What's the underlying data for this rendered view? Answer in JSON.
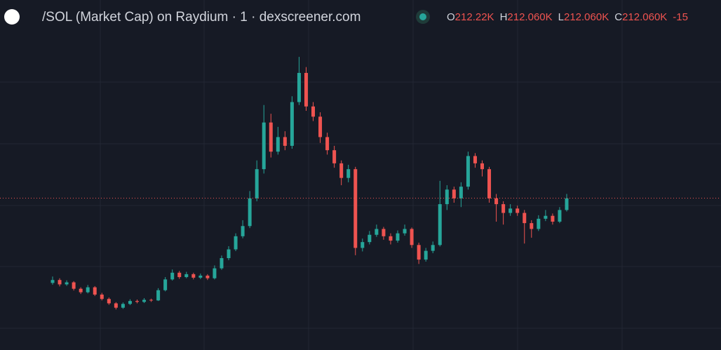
{
  "chart_data": {
    "type": "candlestick",
    "title": "/SOL (Market Cap) on Raydium · 1 · dexscreener.com",
    "legend": [
      {
        "key": "O",
        "value": "212.22K"
      },
      {
        "key": "H",
        "value": "212.060K"
      },
      {
        "key": "L",
        "value": "212.060K"
      },
      {
        "key": "C",
        "value": "212.060K"
      },
      {
        "key": "",
        "value": "-15"
      }
    ],
    "up_color": "#26a69a",
    "down_color": "#ef5350",
    "ylim": [
      160,
      280
    ],
    "last_price": 212.06,
    "ohlc": [
      [
        183.0,
        185.2,
        182.4,
        184.0
      ],
      [
        184.0,
        184.6,
        181.8,
        182.5
      ],
      [
        182.5,
        183.9,
        182.0,
        183.2
      ],
      [
        183.2,
        183.6,
        180.4,
        181.0
      ],
      [
        181.0,
        181.5,
        179.2,
        179.8
      ],
      [
        179.8,
        182.3,
        179.4,
        181.5
      ],
      [
        181.5,
        181.9,
        178.5,
        179.0
      ],
      [
        179.0,
        179.6,
        177.0,
        177.5
      ],
      [
        177.5,
        178.0,
        175.5,
        176.0
      ],
      [
        176.0,
        176.4,
        173.9,
        174.5
      ],
      [
        174.5,
        176.3,
        174.1,
        175.8
      ],
      [
        175.8,
        177.4,
        175.4,
        176.8
      ],
      [
        176.8,
        177.3,
        176.0,
        176.5
      ],
      [
        176.5,
        177.8,
        176.1,
        177.2
      ],
      [
        177.2,
        177.6,
        176.5,
        177.0
      ],
      [
        177.0,
        181.2,
        176.8,
        180.5
      ],
      [
        180.5,
        185.0,
        180.1,
        184.2
      ],
      [
        184.2,
        187.6,
        183.8,
        186.5
      ],
      [
        186.5,
        187.1,
        184.4,
        185.0
      ],
      [
        185.0,
        186.8,
        184.6,
        186.0
      ],
      [
        186.0,
        186.5,
        184.2,
        184.8
      ],
      [
        184.8,
        186.2,
        184.3,
        185.5
      ],
      [
        185.5,
        186.0,
        184.0,
        184.6
      ],
      [
        184.6,
        189.0,
        184.2,
        188.0
      ],
      [
        188.0,
        192.4,
        187.5,
        191.5
      ],
      [
        191.5,
        195.6,
        190.8,
        194.5
      ],
      [
        194.5,
        200.0,
        193.9,
        199.0
      ],
      [
        199.0,
        204.5,
        198.3,
        202.5
      ],
      [
        202.5,
        214.5,
        201.8,
        212.0
      ],
      [
        212.0,
        225.0,
        211.0,
        222.0
      ],
      [
        222.0,
        244.0,
        220.5,
        238.0
      ],
      [
        238.0,
        241.0,
        226.0,
        228.0
      ],
      [
        228.0,
        236.5,
        227.0,
        233.0
      ],
      [
        233.0,
        235.0,
        228.5,
        230.0
      ],
      [
        230.0,
        247.0,
        229.0,
        245.0
      ],
      [
        245.0,
        260.5,
        244.0,
        255.0
      ],
      [
        255.0,
        257.0,
        242.0,
        243.5
      ],
      [
        243.5,
        245.0,
        238.5,
        240.0
      ],
      [
        240.0,
        241.5,
        231.0,
        233.0
      ],
      [
        233.0,
        234.5,
        227.0,
        228.5
      ],
      [
        228.5,
        230.0,
        222.5,
        224.0
      ],
      [
        224.0,
        225.0,
        216.5,
        219.0
      ],
      [
        219.0,
        223.5,
        217.5,
        222.0
      ],
      [
        222.0,
        222.8,
        192.5,
        195.0
      ],
      [
        195.0,
        198.2,
        193.8,
        197.0
      ],
      [
        197.0,
        200.8,
        196.2,
        199.5
      ],
      [
        199.5,
        203.0,
        198.8,
        201.5
      ],
      [
        201.5,
        202.2,
        197.8,
        199.0
      ],
      [
        199.0,
        200.0,
        196.2,
        197.5
      ],
      [
        197.5,
        201.0,
        196.8,
        200.0
      ],
      [
        200.0,
        203.0,
        199.2,
        201.5
      ],
      [
        201.5,
        202.0,
        195.0,
        196.0
      ],
      [
        196.0,
        196.8,
        189.5,
        191.0
      ],
      [
        191.0,
        195.0,
        190.3,
        194.0
      ],
      [
        194.0,
        197.2,
        193.2,
        196.0
      ],
      [
        196.0,
        218.0,
        195.5,
        210.0
      ],
      [
        210.0,
        216.5,
        208.0,
        215.0
      ],
      [
        215.0,
        216.0,
        210.5,
        212.0
      ],
      [
        212.0,
        217.5,
        209.0,
        216.0
      ],
      [
        216.0,
        228.0,
        215.0,
        226.5
      ],
      [
        226.5,
        227.5,
        222.5,
        224.0
      ],
      [
        224.0,
        225.0,
        219.5,
        222.0
      ],
      [
        222.0,
        222.8,
        210.5,
        212.0
      ],
      [
        212.0,
        213.5,
        204.0,
        210.0
      ],
      [
        210.0,
        211.0,
        203.0,
        207.0
      ],
      [
        207.0,
        210.0,
        206.0,
        208.5
      ],
      [
        208.5,
        209.5,
        206.0,
        207.0
      ],
      [
        207.0,
        208.0,
        196.5,
        203.5
      ],
      [
        203.5,
        204.5,
        198.5,
        201.5
      ],
      [
        201.5,
        206.2,
        200.8,
        205.0
      ],
      [
        205.0,
        208.0,
        204.2,
        206.0
      ],
      [
        206.0,
        206.8,
        203.0,
        204.0
      ],
      [
        204.0,
        209.0,
        203.5,
        208.0
      ],
      [
        208.0,
        213.5,
        207.5,
        212.0
      ]
    ]
  }
}
